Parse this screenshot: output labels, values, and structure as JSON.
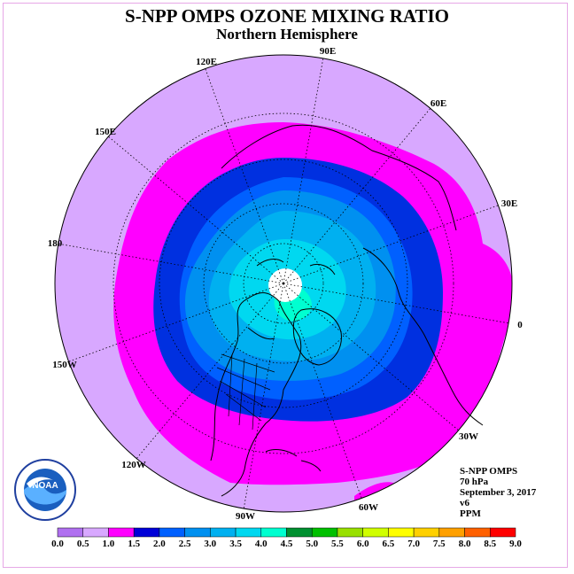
{
  "header": {
    "title": "S-NPP OMPS OZONE MIXING RATIO",
    "subtitle": "Northern Hemisphere"
  },
  "map": {
    "projection": "north-polar-stereographic",
    "longitude_labels": [
      "90E",
      "60E",
      "30E",
      "0",
      "30W",
      "60W",
      "90W",
      "120W",
      "150W",
      "180",
      "150E",
      "120E"
    ],
    "contour_colors_inner_to_outer": [
      "#ffffff",
      "#00ffd0",
      "#00d8f0",
      "#00b0f0",
      "#0090f0",
      "#0060ff",
      "#0030e0",
      "#ff00ff",
      "#d8a8ff"
    ]
  },
  "info": {
    "line1": "S-NPP OMPS",
    "line2": "70 hPa",
    "line3": "September 3, 2017",
    "line4": "v6",
    "line5": "PPM"
  },
  "logo": {
    "text": "NOAA"
  },
  "colorbar": {
    "labels": [
      "0.0",
      "0.5",
      "1.0",
      "1.5",
      "2.0",
      "2.5",
      "3.0",
      "3.5",
      "4.0",
      "4.5",
      "5.0",
      "5.5",
      "6.0",
      "6.5",
      "7.0",
      "7.5",
      "8.0",
      "8.5",
      "9.0"
    ],
    "colors": [
      "#b070f0",
      "#d8a8ff",
      "#ff00ff",
      "#0000d8",
      "#0060ff",
      "#0090f0",
      "#00b0f0",
      "#00d8f0",
      "#00ffd0",
      "#009030",
      "#00c000",
      "#98e000",
      "#d0ff00",
      "#ffff00",
      "#ffd000",
      "#ffa000",
      "#ff6000",
      "#ff0000",
      "#a06040"
    ]
  }
}
